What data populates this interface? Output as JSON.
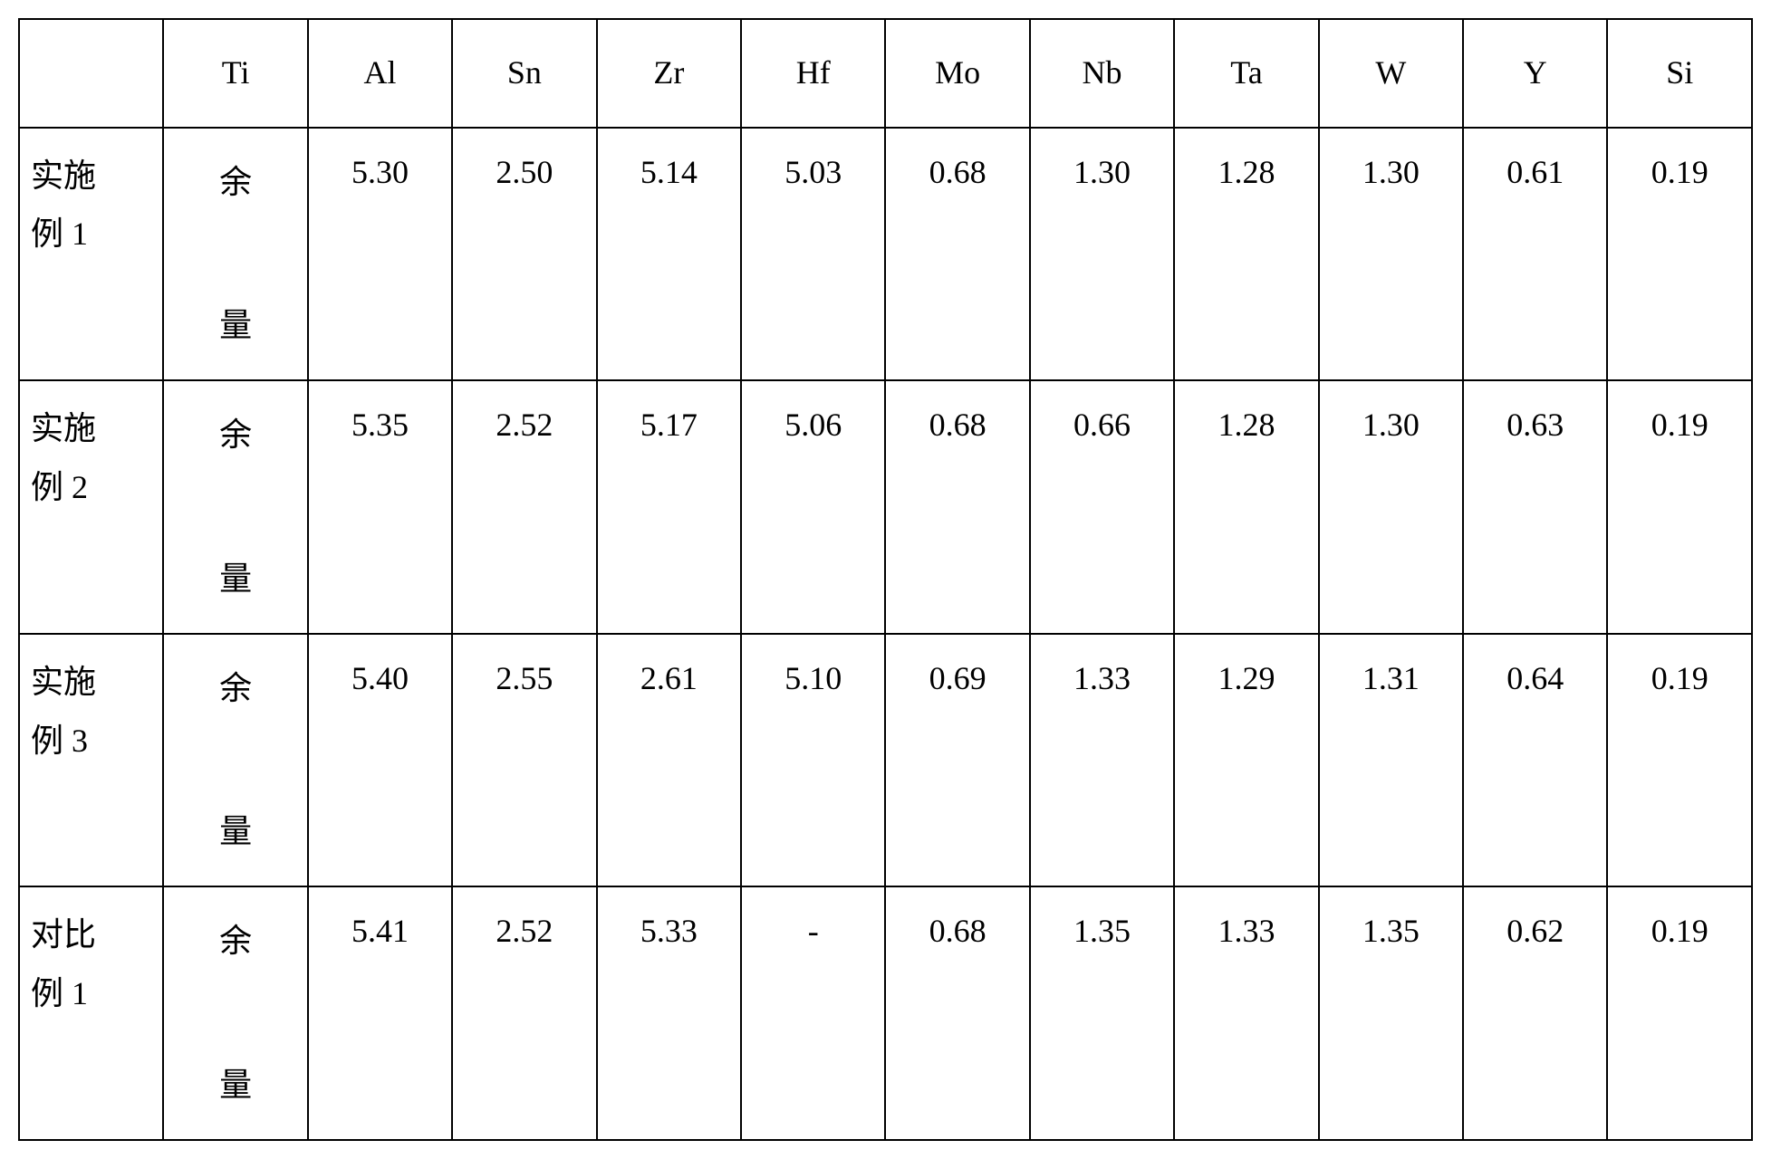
{
  "table": {
    "columns": [
      "",
      "Ti",
      "Al",
      "Sn",
      "Zr",
      "Hf",
      "Mo",
      "Nb",
      "Ta",
      "W",
      "Y",
      "Si"
    ],
    "rows": [
      {
        "label": "实施例 1",
        "ti": "余量",
        "values": [
          "5.30",
          "2.50",
          "5.14",
          "5.03",
          "0.68",
          "1.30",
          "1.28",
          "1.30",
          "0.61",
          "0.19"
        ]
      },
      {
        "label": "实施例 2",
        "ti": "余量",
        "values": [
          "5.35",
          "2.52",
          "5.17",
          "5.06",
          "0.68",
          "0.66",
          "1.28",
          "1.30",
          "0.63",
          "0.19"
        ]
      },
      {
        "label": "实施例 3",
        "ti": "余量",
        "values": [
          "5.40",
          "2.55",
          "2.61",
          "5.10",
          "0.69",
          "1.33",
          "1.29",
          "1.31",
          "0.64",
          "0.19"
        ]
      },
      {
        "label": "对比例 1",
        "ti": "余量",
        "values": [
          "5.41",
          "2.52",
          "5.33",
          "-",
          "0.68",
          "1.35",
          "1.33",
          "1.35",
          "0.62",
          "0.19"
        ]
      }
    ],
    "border_color": "#000000",
    "background_color": "#ffffff",
    "font_size": 36,
    "font_family": "Times New Roman"
  }
}
